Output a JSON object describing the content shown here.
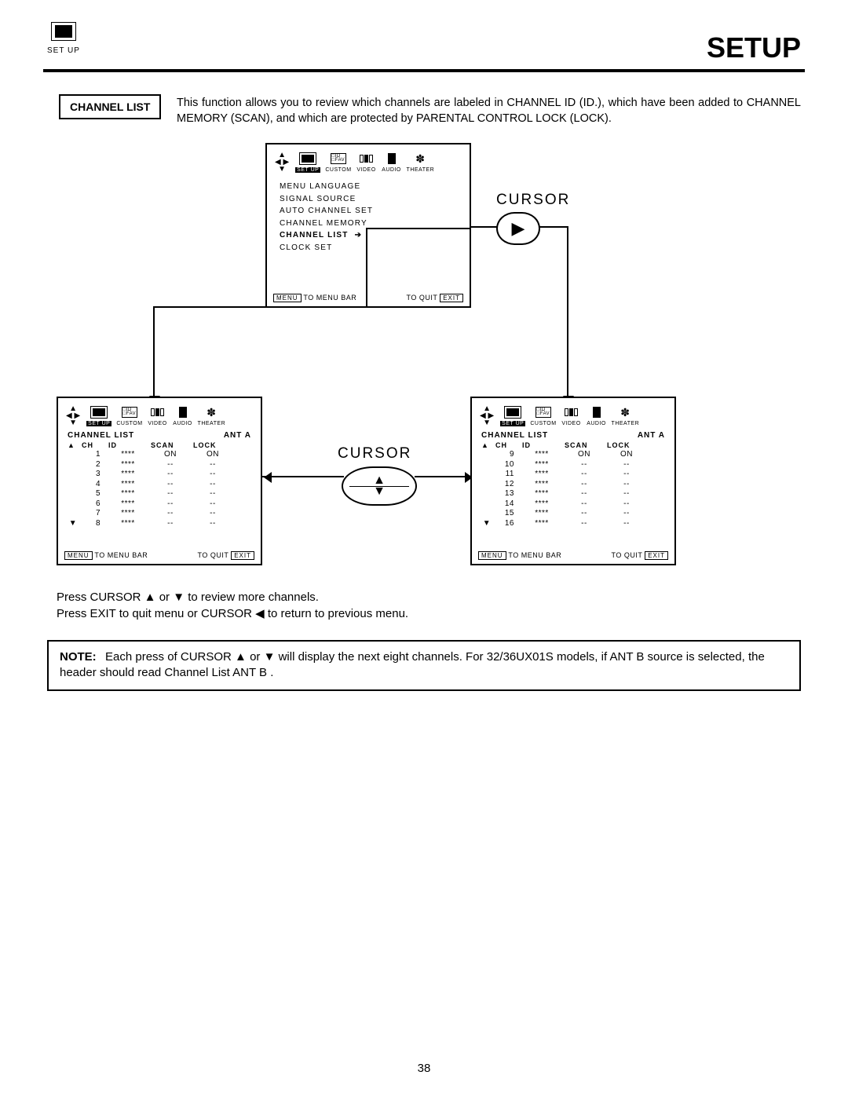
{
  "page": {
    "title": "SETUP",
    "top_icon_label": "SET UP",
    "number": "38"
  },
  "section": {
    "label": "CHANNEL LIST",
    "intro": "This function allows you to review which channels are labeled in CHANNEL ID (ID.), which have been added to CHANNEL MEMORY (SCAN), and which are protected by PARENTAL CONTROL LOCK (LOCK)."
  },
  "menu_tabs": [
    "SET UP",
    "CUSTOM",
    "VIDEO",
    "AUDIO",
    "THEATER"
  ],
  "setup_menu": {
    "items": [
      "MENU LANGUAGE",
      "SIGNAL SOURCE",
      "AUTO CHANNEL SET",
      "CHANNEL MEMORY",
      "CHANNEL LIST",
      "CLOCK SET"
    ],
    "selected": "CHANNEL LIST",
    "footer_menu": "MENU",
    "footer_text1": "TO MENU BAR",
    "footer_text2": "TO QUIT",
    "footer_exit": "EXIT"
  },
  "cursor_labels": {
    "right": "CURSOR",
    "updown": "CURSOR"
  },
  "channel_list": {
    "title": "CHANNEL LIST",
    "ant": "ANT A",
    "cols": [
      "CH",
      "ID",
      "SCAN",
      "LOCK"
    ],
    "page1": [
      {
        "ch": "1",
        "id": "****",
        "scan": "ON",
        "lock": "ON"
      },
      {
        "ch": "2",
        "id": "****",
        "scan": "--",
        "lock": "--"
      },
      {
        "ch": "3",
        "id": "****",
        "scan": "--",
        "lock": "--"
      },
      {
        "ch": "4",
        "id": "****",
        "scan": "--",
        "lock": "--"
      },
      {
        "ch": "5",
        "id": "****",
        "scan": "--",
        "lock": "--"
      },
      {
        "ch": "6",
        "id": "****",
        "scan": "--",
        "lock": "--"
      },
      {
        "ch": "7",
        "id": "****",
        "scan": "--",
        "lock": "--"
      },
      {
        "ch": "8",
        "id": "****",
        "scan": "--",
        "lock": "--"
      }
    ],
    "page2": [
      {
        "ch": "9",
        "id": "****",
        "scan": "ON",
        "lock": "ON"
      },
      {
        "ch": "10",
        "id": "****",
        "scan": "--",
        "lock": "--"
      },
      {
        "ch": "11",
        "id": "****",
        "scan": "--",
        "lock": "--"
      },
      {
        "ch": "12",
        "id": "****",
        "scan": "--",
        "lock": "--"
      },
      {
        "ch": "13",
        "id": "****",
        "scan": "--",
        "lock": "--"
      },
      {
        "ch": "14",
        "id": "****",
        "scan": "--",
        "lock": "--"
      },
      {
        "ch": "15",
        "id": "****",
        "scan": "--",
        "lock": "--"
      },
      {
        "ch": "16",
        "id": "****",
        "scan": "--",
        "lock": "--"
      }
    ]
  },
  "instructions": {
    "l1": "Press CURSOR ▲ or ▼ to review more channels.",
    "l2": "Press EXIT to quit menu or CURSOR ◀ to return to previous menu."
  },
  "note": {
    "label": "NOTE:",
    "text": "Each press of CURSOR ▲ or ▼ will display the next eight channels.  For 32/36UX01S models, if ANT B source is selected, the header should read  Channel List ANT B ."
  },
  "style": {
    "colors": {
      "fg": "#000000",
      "bg": "#ffffff"
    },
    "fonts": {
      "body_pt": 11,
      "title_pt": 27,
      "osd_pt": 7
    }
  }
}
